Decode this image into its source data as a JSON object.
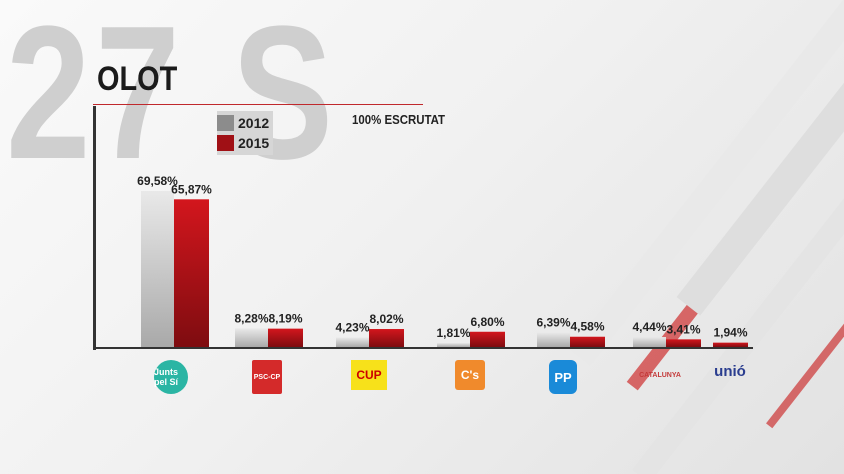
{
  "background_text": "27 S",
  "colors": {
    "y2012": "#b5b5b5",
    "y2015": "#b01218",
    "accent": "#c0282c"
  },
  "chart_data": {
    "type": "bar",
    "title": "OLOT",
    "subtitle": "100% ESCRUTAT",
    "categories": [
      "Junts pel Sí",
      "PSC-CP",
      "CUP",
      "C's",
      "PP",
      "Catalunya Sí que es Pot",
      "Unió"
    ],
    "series": [
      {
        "name": "2012",
        "values": [
          69.58,
          8.28,
          4.23,
          1.81,
          6.39,
          4.44,
          null
        ],
        "labels": [
          "69,58%",
          "8,28%",
          "4,23%",
          "1,81%",
          "6,39%",
          "4,44%",
          null
        ]
      },
      {
        "name": "2015",
        "values": [
          65.87,
          8.19,
          8.02,
          6.8,
          4.58,
          3.41,
          1.94
        ],
        "labels": [
          "65,87%",
          "8,19%",
          "8,02%",
          "6,80%",
          "4,58%",
          "3,41%",
          "1,94%"
        ]
      }
    ],
    "ylim": [
      0,
      75
    ],
    "legend": "top-left",
    "grid": false
  },
  "logos": [
    {
      "text": "Junts pel Sí",
      "color": "#2bb5a4"
    },
    {
      "text": "PSC-CP",
      "color": "#d42a2a"
    },
    {
      "text": "CUP",
      "color": "#f7e11a"
    },
    {
      "text": "C's",
      "color": "#f08a2c"
    },
    {
      "text": "PP",
      "color": "#1a8ad8"
    },
    {
      "text": "CATALUNYA",
      "color": "#c43a3a"
    },
    {
      "text": "unió",
      "color": "#2a3d8f"
    }
  ]
}
